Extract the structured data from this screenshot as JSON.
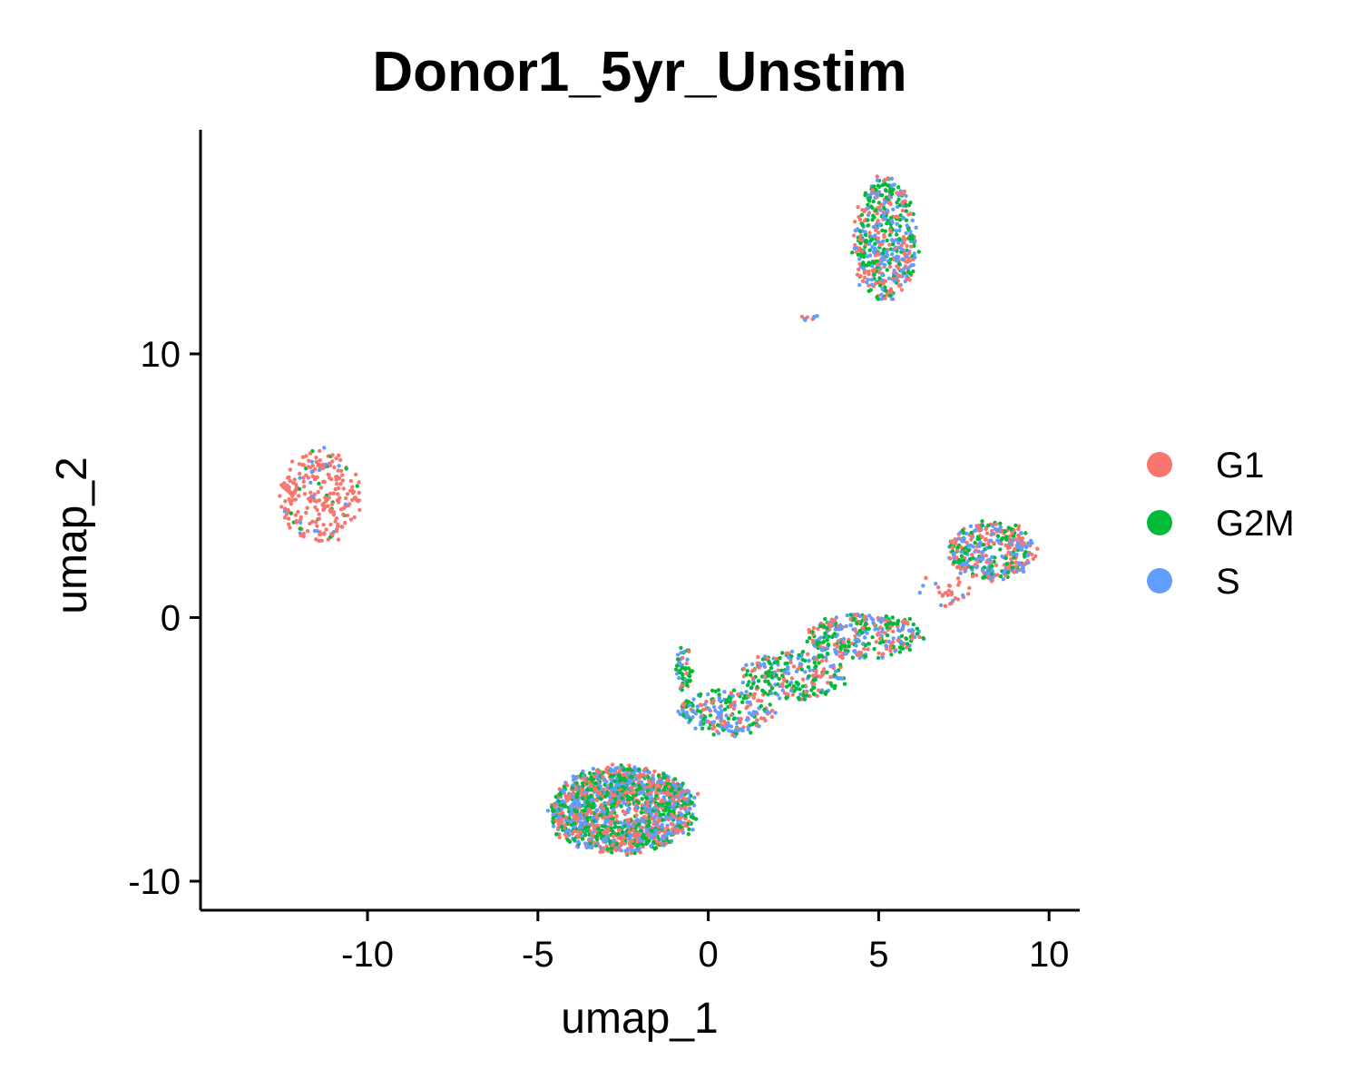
{
  "chart_data": {
    "type": "scatter",
    "title": "Donor1_5yr_Unstim",
    "xlabel": "umap_1",
    "ylabel": "umap_2",
    "xlim": [
      -14.9,
      10.9
    ],
    "ylim": [
      -11.1,
      18.5
    ],
    "xticks": [
      -10,
      -5,
      0,
      5,
      10
    ],
    "yticks": [
      -10,
      0,
      10
    ],
    "xtick_labels": [
      "-10",
      "-5",
      "0",
      "5",
      "10"
    ],
    "ytick_labels": [
      "-10",
      "0",
      "10"
    ],
    "grid": false,
    "legend_position": "right",
    "series": [
      {
        "name": "G1",
        "color": "#F8766D"
      },
      {
        "name": "G2M",
        "color": "#00BA38"
      },
      {
        "name": "S",
        "color": "#619CFF"
      }
    ],
    "clusters": [
      {
        "name": "left",
        "center": [
          -11.4,
          4.6
        ],
        "spread": [
          0.7,
          1.0
        ],
        "count": 260,
        "mix": [
          0.86,
          0.08,
          0.06
        ]
      },
      {
        "name": "top",
        "center": [
          5.2,
          14.3
        ],
        "spread": [
          0.55,
          1.35
        ],
        "count": 520,
        "mix": [
          0.33,
          0.34,
          0.33
        ]
      },
      {
        "name": "top-tail",
        "center": [
          2.8,
          11.4
        ],
        "spread": [
          0.25,
          0.08
        ],
        "count": 8,
        "mix": [
          0.5,
          0.0,
          0.5
        ]
      },
      {
        "name": "right",
        "center": [
          8.3,
          2.5
        ],
        "spread": [
          0.75,
          0.65
        ],
        "count": 380,
        "mix": [
          0.4,
          0.25,
          0.35
        ]
      },
      {
        "name": "right-tail",
        "center": [
          6.9,
          1.0
        ],
        "spread": [
          0.5,
          0.35
        ],
        "count": 30,
        "mix": [
          0.6,
          0.05,
          0.35
        ]
      },
      {
        "name": "middle-1",
        "center": [
          4.6,
          -0.7
        ],
        "spread": [
          1.0,
          0.5
        ],
        "count": 320,
        "mix": [
          0.3,
          0.4,
          0.3
        ]
      },
      {
        "name": "middle-2",
        "center": [
          2.5,
          -2.2
        ],
        "spread": [
          0.9,
          0.55
        ],
        "count": 260,
        "mix": [
          0.3,
          0.4,
          0.3
        ]
      },
      {
        "name": "middle-3",
        "center": [
          0.5,
          -3.6
        ],
        "spread": [
          0.8,
          0.5
        ],
        "count": 220,
        "mix": [
          0.3,
          0.35,
          0.35
        ]
      },
      {
        "name": "small-loop",
        "center": [
          -0.7,
          -1.9
        ],
        "spread": [
          0.15,
          0.5
        ],
        "count": 60,
        "mix": [
          0.2,
          0.6,
          0.2
        ]
      },
      {
        "name": "bottom",
        "center": [
          -2.5,
          -7.3
        ],
        "spread": [
          1.25,
          0.95
        ],
        "count": 1700,
        "mix": [
          0.34,
          0.34,
          0.32
        ]
      }
    ]
  }
}
